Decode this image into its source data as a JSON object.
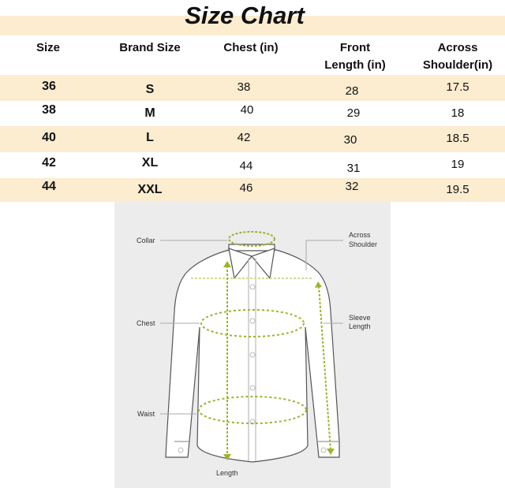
{
  "title": "Size Chart",
  "headers": [
    "Size",
    "Brand Size",
    "Chest (in)",
    "Front Length (in)",
    "Across Shoulder(in)"
  ],
  "header_lines": {
    "front": [
      "Front",
      "Length (in)"
    ],
    "across": [
      "Across",
      "Shoulder(in)"
    ]
  },
  "rows": [
    {
      "size": "36",
      "brand": "S",
      "chest": "38",
      "front": "28",
      "shoulder": "17.5"
    },
    {
      "size": "38",
      "brand": "M",
      "chest": "40",
      "front": "29",
      "shoulder": "18"
    },
    {
      "size": "40",
      "brand": "L",
      "chest": "42",
      "front": "30",
      "shoulder": "18.5"
    },
    {
      "size": "42",
      "brand": "XL",
      "chest": "44",
      "front": "31",
      "shoulder": "19"
    },
    {
      "size": "44",
      "brand": "XXL",
      "chest": "46",
      "front": "32",
      "shoulder": "19.5"
    }
  ],
  "diagram": {
    "collar": "Collar",
    "across_shoulder": [
      "Across",
      "Shoulder"
    ],
    "chest": "Chest",
    "sleeve_length": [
      "Sleeve",
      "Length"
    ],
    "waist": "Waist",
    "length": "Length"
  },
  "colors": {
    "row_band": "#fcecd0",
    "measure_line": "#9bb52a",
    "panel_bg": "#ececec"
  }
}
